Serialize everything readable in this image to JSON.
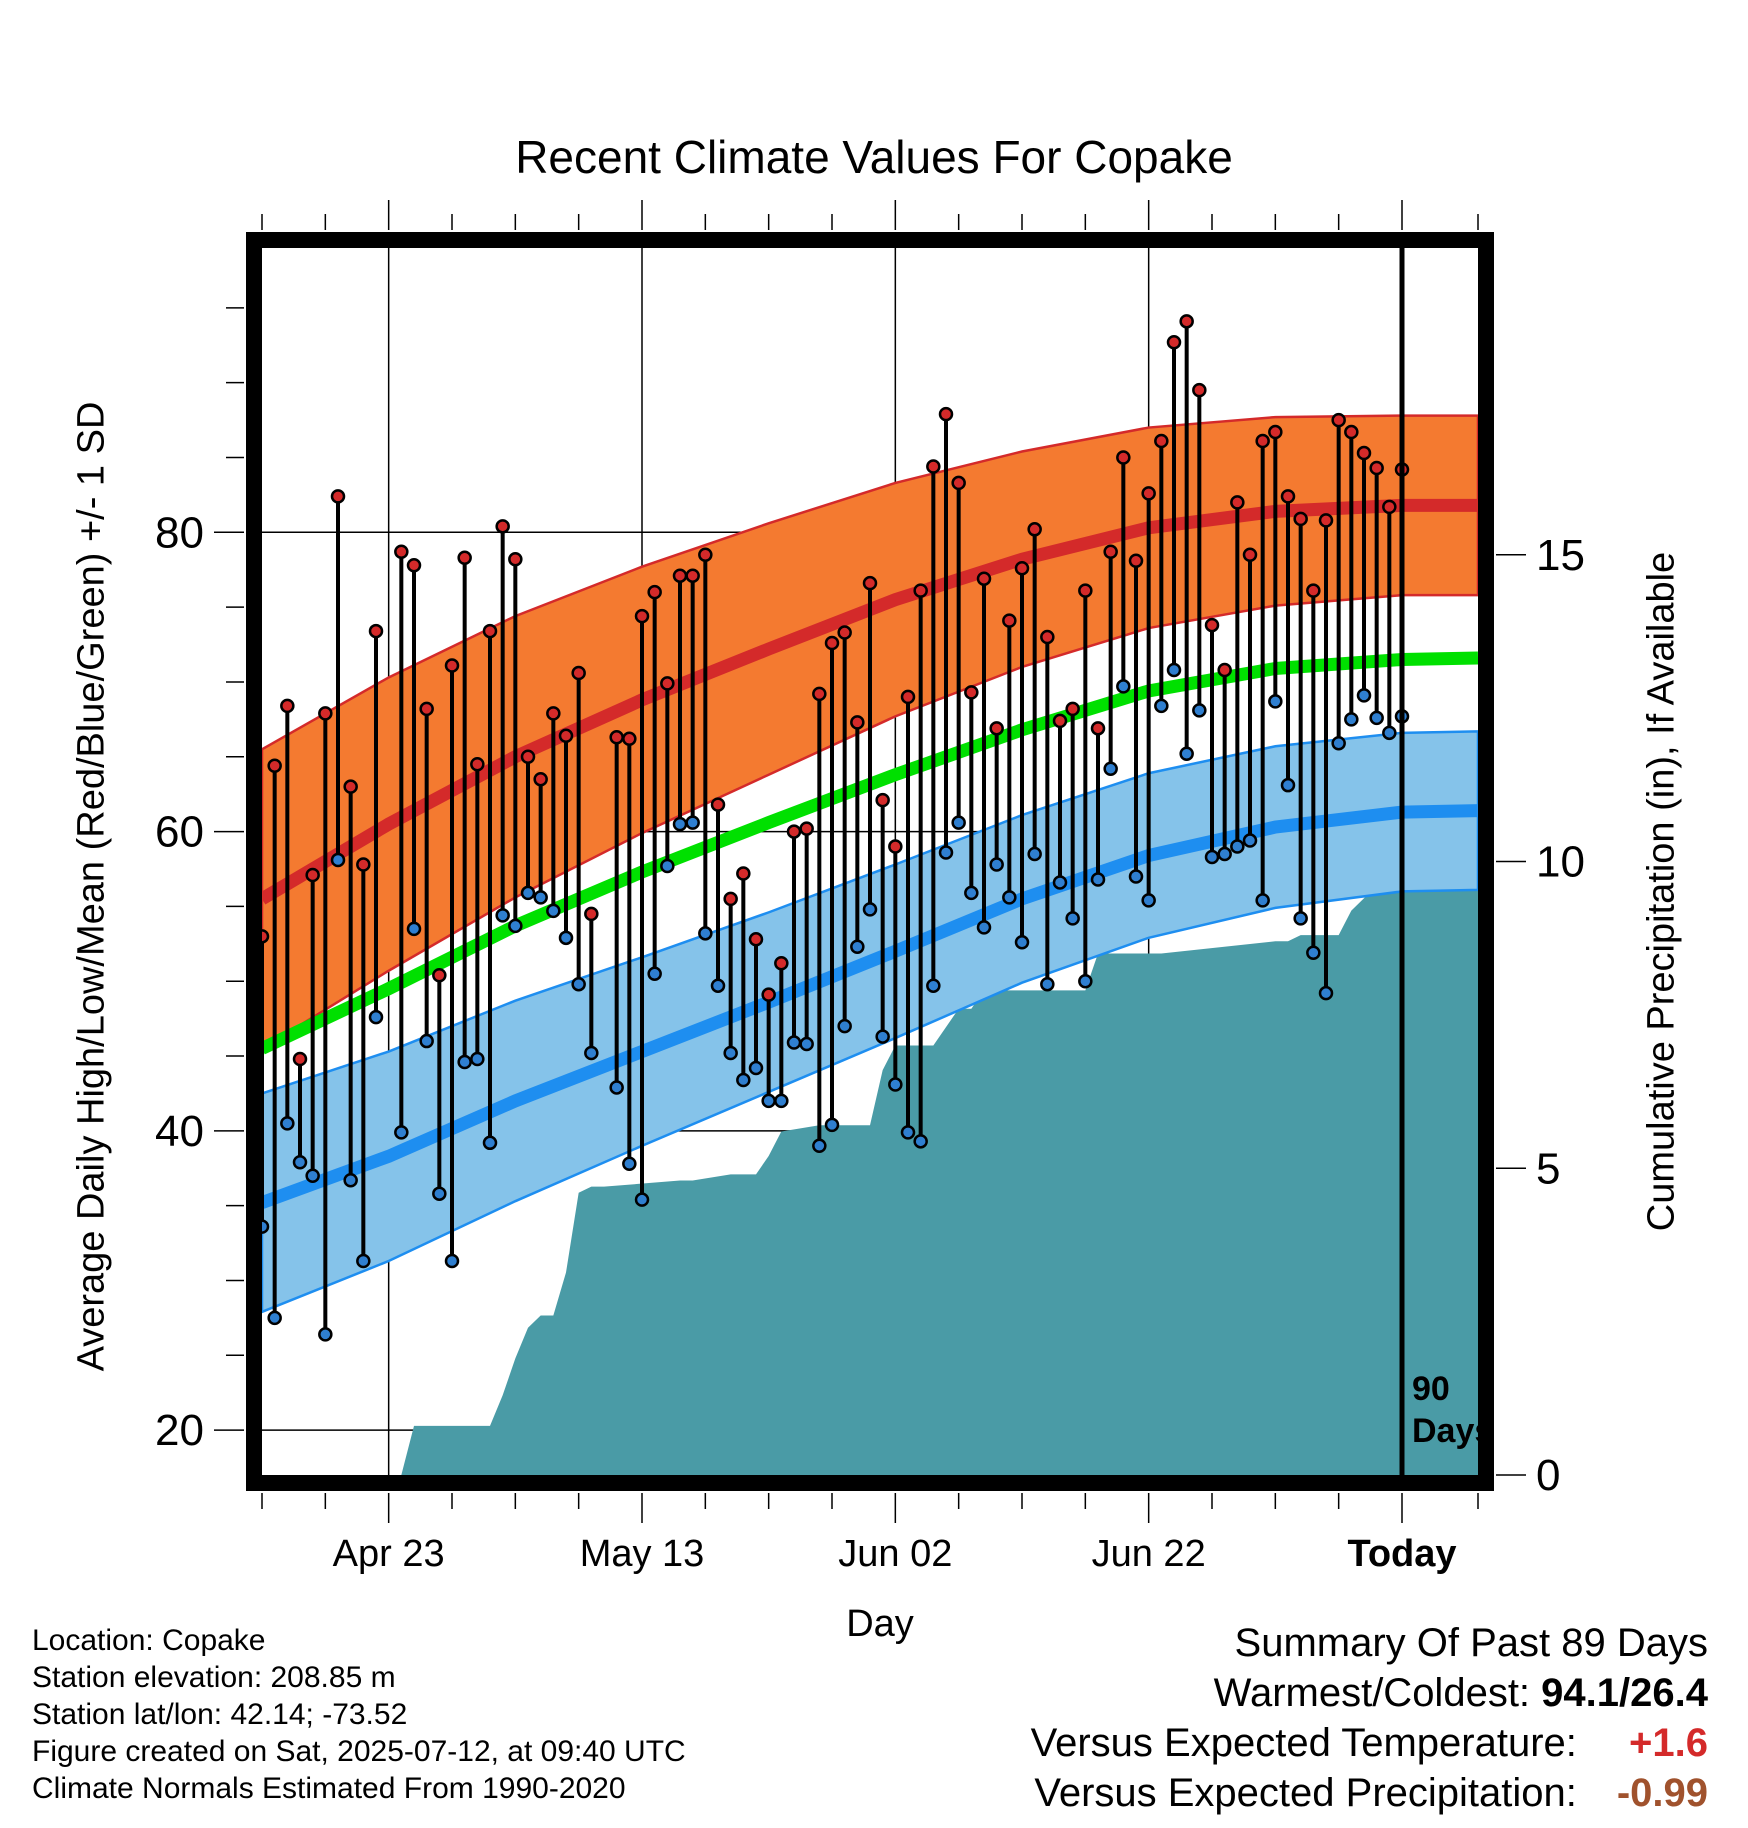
{
  "title": "Recent Climate Values For Copake",
  "left_axis_label": "Average Daily High/Low/Mean (Red/Blue/Green) +/- 1 SD",
  "right_axis_label": "Cumulative Precipitation (in), If Available",
  "x_axis_label": "Day",
  "days_label_line1": "90",
  "days_label_line2": "Days",
  "info": {
    "location": "Location: Copake",
    "elevation": "Station elevation: 208.85 m",
    "latlon": "Station lat/lon: 42.14; -73.52",
    "created": "Figure created on Sat, 2025-07-12, at 09:40 UTC",
    "normals": "Climate Normals Estimated From 1990-2020"
  },
  "summary": {
    "heading": "Summary Of Past 89 Days",
    "warm_cold_label": "Warmest/Coldest:",
    "warm_cold_value": "94.1/26.4",
    "temp_label": "Versus Expected Temperature:",
    "temp_value": "+1.6",
    "prcp_label": "Versus Expected Precipitation:",
    "prcp_value": "-0.99"
  },
  "colors": {
    "high_band": "#f47a30",
    "high_mean": "#d42a2a",
    "low_band": "#85c3ea",
    "low_mean": "#1e8ef0",
    "mean": "#00e000",
    "precip": "#4a9ba6",
    "high_dot": "#d42a2a",
    "low_dot": "#2f7fd0"
  },
  "chart_data": {
    "type": "line",
    "x_range_days": [
      -88,
      8
    ],
    "y_left_range": [
      17,
      99
    ],
    "y_right_range": [
      0,
      20
    ],
    "y_left_ticks": [
      20,
      40,
      60,
      80
    ],
    "y_right_ticks": [
      0,
      5,
      10,
      15
    ],
    "x_ticks": [
      {
        "day": -78,
        "label": "Apr 23"
      },
      {
        "day": -58,
        "label": "May 13"
      },
      {
        "day": -38,
        "label": "Jun 02"
      },
      {
        "day": -18,
        "label": "Jun 22"
      },
      {
        "day": 2,
        "label": "Today"
      }
    ],
    "normals": {
      "days": [
        -88,
        -78,
        -68,
        -58,
        -48,
        -38,
        -28,
        -18,
        -8,
        2,
        8
      ],
      "high_mean": [
        55.5,
        60.5,
        65.0,
        68.8,
        72.2,
        75.5,
        78.2,
        80.3,
        81.4,
        81.8,
        81.8
      ],
      "high_sd": [
        10.0,
        9.8,
        9.4,
        8.9,
        8.4,
        7.8,
        7.2,
        6.7,
        6.3,
        6.0,
        6.0
      ],
      "low_mean": [
        35.2,
        38.3,
        42.0,
        45.3,
        48.6,
        52.0,
        55.5,
        58.4,
        60.3,
        61.3,
        61.4
      ],
      "low_sd": [
        7.3,
        7.0,
        6.7,
        6.3,
        6.0,
        5.8,
        5.6,
        5.5,
        5.4,
        5.3,
        5.3
      ],
      "mean": [
        45.5,
        49.5,
        53.7,
        57.3,
        60.6,
        63.8,
        66.8,
        69.4,
        70.9,
        71.5,
        71.6
      ]
    },
    "daily": {
      "start_day": -88,
      "high": [
        53.0,
        64.4,
        68.4,
        44.8,
        57.1,
        67.9,
        82.4,
        63.0,
        57.8,
        73.4,
        null,
        78.7,
        77.8,
        68.2,
        50.4,
        71.1,
        78.3,
        64.5,
        73.4,
        80.4,
        78.2,
        65.0,
        63.5,
        67.9,
        66.4,
        70.6,
        54.5,
        null,
        66.3,
        66.2,
        74.4,
        76.0,
        69.9,
        77.1,
        77.1,
        78.5,
        61.8,
        55.5,
        57.2,
        52.8,
        49.1,
        51.2,
        60.0,
        60.2,
        69.2,
        72.6,
        73.3,
        67.3,
        76.6,
        62.1,
        59.0,
        69.0,
        76.1,
        84.4,
        87.9,
        83.3,
        69.3,
        76.9,
        66.9,
        74.1,
        77.6,
        80.2,
        73.0,
        67.4,
        68.2,
        76.1,
        66.9,
        78.7,
        85.0,
        78.1,
        82.6,
        86.1,
        92.7,
        94.1,
        89.5,
        73.8,
        70.8,
        82.0,
        78.5,
        86.1,
        86.7,
        82.4,
        80.9,
        76.1,
        80.8,
        87.5,
        86.7,
        85.3,
        84.3,
        81.7,
        84.2
      ],
      "low": [
        33.6,
        27.5,
        40.5,
        37.9,
        37.0,
        26.4,
        58.1,
        36.7,
        31.3,
        47.6,
        null,
        39.9,
        53.5,
        46.0,
        35.8,
        31.3,
        44.6,
        44.8,
        39.2,
        54.4,
        53.7,
        55.9,
        55.6,
        54.7,
        52.9,
        49.8,
        45.2,
        null,
        42.9,
        37.8,
        35.4,
        50.5,
        57.7,
        60.5,
        60.6,
        53.2,
        49.7,
        45.2,
        43.4,
        44.2,
        42.0,
        42.0,
        45.9,
        45.8,
        39.0,
        40.4,
        47.0,
        52.3,
        54.8,
        46.3,
        43.1,
        39.9,
        39.3,
        49.7,
        58.6,
        60.6,
        55.9,
        53.6,
        57.8,
        55.6,
        52.6,
        58.5,
        49.8,
        56.6,
        54.2,
        50.0,
        56.8,
        64.2,
        69.7,
        57.0,
        55.4,
        68.4,
        70.8,
        65.2,
        68.1,
        58.3,
        58.5,
        59.0,
        59.4,
        55.4,
        68.7,
        63.1,
        54.2,
        51.9,
        49.2,
        65.9,
        67.5,
        69.1,
        67.6,
        66.6,
        67.7
      ]
    },
    "precip_cumulative": {
      "days": [
        -88,
        -77,
        -76,
        -70,
        -69,
        -68,
        -67,
        -66,
        -65,
        -64,
        -63,
        -62,
        -61,
        -55,
        -54,
        -51,
        -50,
        -49,
        -48,
        -47,
        -44,
        -43,
        -42,
        -40,
        -39,
        -38,
        -37,
        -35,
        -34,
        -33,
        -32,
        -31,
        -29,
        -28,
        -27,
        -26,
        -23,
        -22,
        -21,
        -20,
        -19,
        -18,
        -17,
        -8,
        -7,
        -6,
        -5,
        -4,
        -3,
        -2,
        -1,
        0,
        8
      ],
      "values": [
        0,
        0,
        0.8,
        0.8,
        1.3,
        1.9,
        2.4,
        2.6,
        2.6,
        3.3,
        4.6,
        4.7,
        4.7,
        4.8,
        4.8,
        4.9,
        4.9,
        4.9,
        5.2,
        5.6,
        5.7,
        5.7,
        5.7,
        5.7,
        6.6,
        7.0,
        7.0,
        7.0,
        7.3,
        7.6,
        7.6,
        7.9,
        7.9,
        7.9,
        7.9,
        7.9,
        7.9,
        8.5,
        8.5,
        8.5,
        8.5,
        8.5,
        8.5,
        8.7,
        8.7,
        8.8,
        8.8,
        8.8,
        8.8,
        9.2,
        9.4,
        9.6,
        9.6
      ]
    }
  }
}
